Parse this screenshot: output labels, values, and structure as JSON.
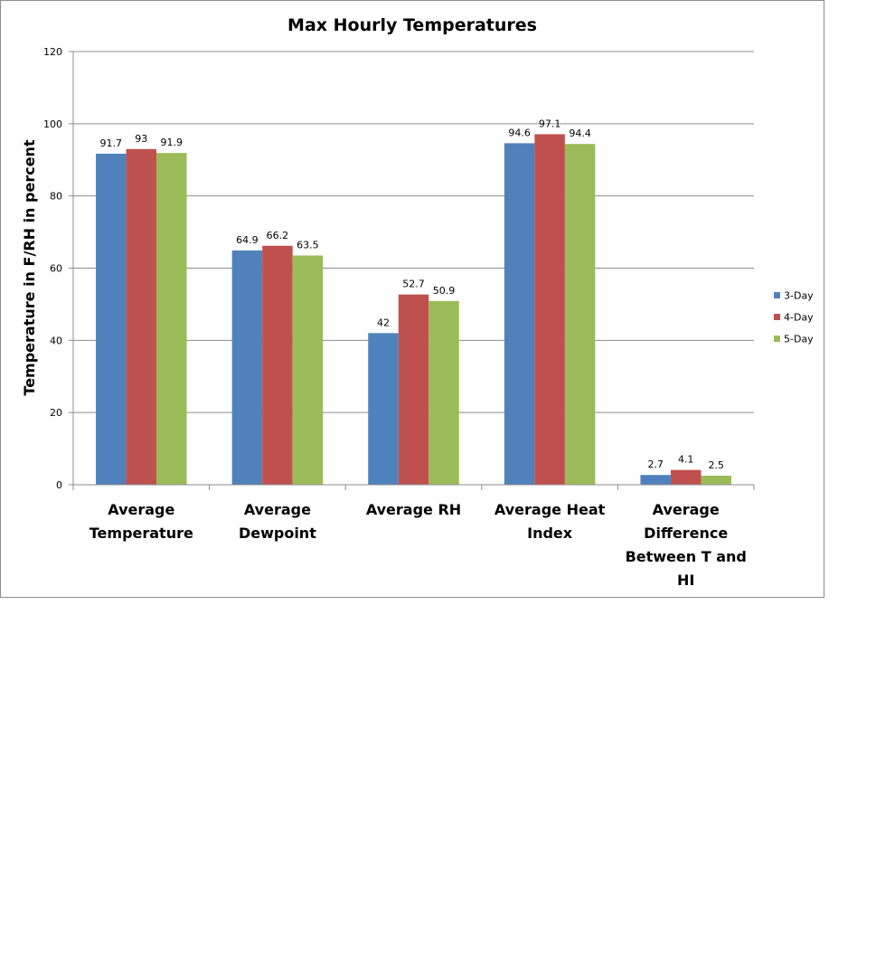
{
  "chart_data": {
    "type": "bar",
    "title": "Max Hourly Temperatures",
    "ylabel": "Temperature in F/RH in percent",
    "xlabel": "",
    "ylim": [
      0,
      120
    ],
    "yticks": [
      0,
      20,
      40,
      60,
      80,
      100,
      120
    ],
    "grid": true,
    "legend_position": "right",
    "categories": [
      [
        "Average",
        "Temperature"
      ],
      [
        "Average",
        "Dewpoint"
      ],
      [
        "Average RH"
      ],
      [
        "Average Heat",
        "Index"
      ],
      [
        "Average",
        "Difference",
        "Between T and",
        "HI"
      ]
    ],
    "series": [
      {
        "name": "3-Day",
        "color": "#4f81bd",
        "values": [
          91.7,
          64.9,
          42,
          94.6,
          2.7
        ]
      },
      {
        "name": "4-Day",
        "color": "#c0504d",
        "values": [
          93,
          66.2,
          52.7,
          97.1,
          4.1
        ]
      },
      {
        "name": "5-Day",
        "color": "#9bbb59",
        "values": [
          91.9,
          63.5,
          50.9,
          94.4,
          2.5
        ]
      }
    ]
  }
}
